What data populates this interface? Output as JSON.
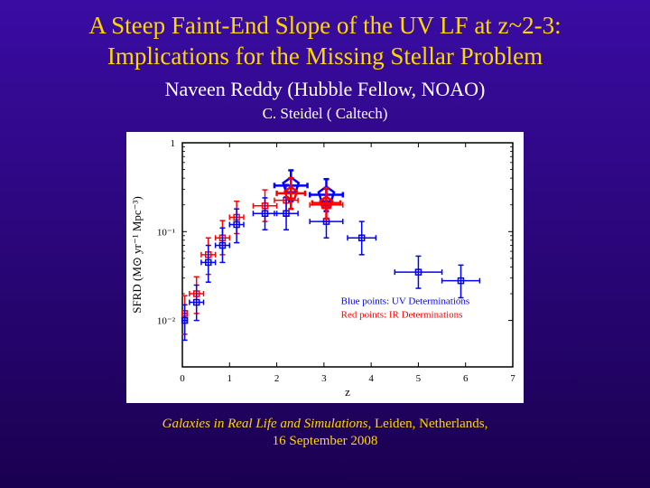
{
  "title_line1": "A Steep Faint-End Slope of the UV LF at z~2-3:",
  "title_line2": "Implications for the Missing Stellar Problem",
  "author1": "Naveen Reddy (Hubble Fellow, NOAO)",
  "author2": "C. Steidel ( Caltech)",
  "footer_italic": "Galaxies in Real Life and Simulations, ",
  "footer_rest": "Leiden, Netherlands,",
  "footer_line2": "16 September 2008",
  "chart": {
    "type": "scatter-errorbar",
    "xlabel": "z",
    "ylabel": "SFRD (M⊙ yr⁻¹ Mpc⁻³)",
    "xlim": [
      0,
      7
    ],
    "ylim": [
      0.003,
      1
    ],
    "yscale": "log",
    "xtick_step": 1,
    "yticks": [
      0.01,
      0.1,
      1
    ],
    "yticklabels": [
      "10⁻²",
      "10⁻¹",
      "1"
    ],
    "background_color": "#ffffff",
    "axis_color": "#000000",
    "tick_fontsize": 11,
    "label_fontsize": 13,
    "legend": {
      "blue_text": "Blue points: UV Determinations",
      "red_text": "Red points: IR Determinations",
      "blue_color": "#0000ff",
      "red_color": "#ff0000",
      "fontsize": 11,
      "position": "lower-right"
    },
    "series_blue": {
      "color": "#0000ff",
      "marker": "square-open",
      "marker_size": 6,
      "line_width": 1.5,
      "points": [
        {
          "x": 0.05,
          "y": 0.01,
          "xerr": 0.05,
          "yerr_lo": 0.004,
          "yerr_hi": 0.005
        },
        {
          "x": 0.3,
          "y": 0.016,
          "xerr": 0.15,
          "yerr_lo": 0.006,
          "yerr_hi": 0.009
        },
        {
          "x": 0.55,
          "y": 0.045,
          "xerr": 0.15,
          "yerr_lo": 0.018,
          "yerr_hi": 0.025
        },
        {
          "x": 0.85,
          "y": 0.07,
          "xerr": 0.15,
          "yerr_lo": 0.025,
          "yerr_hi": 0.04
        },
        {
          "x": 1.15,
          "y": 0.12,
          "xerr": 0.15,
          "yerr_lo": 0.045,
          "yerr_hi": 0.06
        },
        {
          "x": 1.75,
          "y": 0.16,
          "xerr": 0.25,
          "yerr_lo": 0.055,
          "yerr_hi": 0.08
        },
        {
          "x": 2.2,
          "y": 0.16,
          "xerr": 0.25,
          "yerr_lo": 0.055,
          "yerr_hi": 0.085
        },
        {
          "x": 3.05,
          "y": 0.13,
          "xerr": 0.35,
          "yerr_lo": 0.045,
          "yerr_hi": 0.065
        },
        {
          "x": 3.8,
          "y": 0.085,
          "xerr": 0.3,
          "yerr_lo": 0.03,
          "yerr_hi": 0.045
        },
        {
          "x": 5.0,
          "y": 0.035,
          "xerr": 0.5,
          "yerr_lo": 0.012,
          "yerr_hi": 0.018
        },
        {
          "x": 5.9,
          "y": 0.028,
          "xerr": 0.4,
          "yerr_lo": 0.01,
          "yerr_hi": 0.014
        }
      ]
    },
    "series_red": {
      "color": "#ff0000",
      "marker": "square-open",
      "marker_size": 6,
      "line_width": 1.5,
      "points": [
        {
          "x": 0.05,
          "y": 0.012,
          "xerr": 0.05,
          "yerr_lo": 0.005,
          "yerr_hi": 0.007
        },
        {
          "x": 0.3,
          "y": 0.02,
          "xerr": 0.15,
          "yerr_lo": 0.008,
          "yerr_hi": 0.011
        },
        {
          "x": 0.55,
          "y": 0.055,
          "xerr": 0.15,
          "yerr_lo": 0.022,
          "yerr_hi": 0.03
        },
        {
          "x": 0.85,
          "y": 0.085,
          "xerr": 0.15,
          "yerr_lo": 0.03,
          "yerr_hi": 0.048
        },
        {
          "x": 1.15,
          "y": 0.145,
          "xerr": 0.15,
          "yerr_lo": 0.05,
          "yerr_hi": 0.075
        },
        {
          "x": 1.75,
          "y": 0.195,
          "xerr": 0.25,
          "yerr_lo": 0.065,
          "yerr_hi": 0.1
        },
        {
          "x": 2.2,
          "y": 0.225,
          "xerr": 0.25,
          "yerr_lo": 0.075,
          "yerr_hi": 0.115
        },
        {
          "x": 3.05,
          "y": 0.2,
          "xerr": 0.35,
          "yerr_lo": 0.07,
          "yerr_hi": 0.1
        }
      ]
    },
    "pentagon_blue": {
      "color": "#0000ff",
      "marker": "pentagon-open",
      "marker_size": 18,
      "line_width": 2.5,
      "points": [
        {
          "x": 2.3,
          "y": 0.33,
          "xerr": 0.35,
          "yerr_lo": 0.11,
          "yerr_hi": 0.16
        },
        {
          "x": 3.05,
          "y": 0.26,
          "xerr": 0.35,
          "yerr_lo": 0.09,
          "yerr_hi": 0.13
        }
      ]
    },
    "pentagon_red": {
      "color": "#ff0000",
      "marker": "pentagon-open",
      "marker_size": 14,
      "line_width": 2.5,
      "points": [
        {
          "x": 2.3,
          "y": 0.27,
          "xerr": 0.3,
          "yerr_lo": 0.09,
          "yerr_hi": 0.13
        },
        {
          "x": 3.05,
          "y": 0.21,
          "xerr": 0.3,
          "yerr_lo": 0.07,
          "yerr_hi": 0.1
        }
      ]
    }
  }
}
